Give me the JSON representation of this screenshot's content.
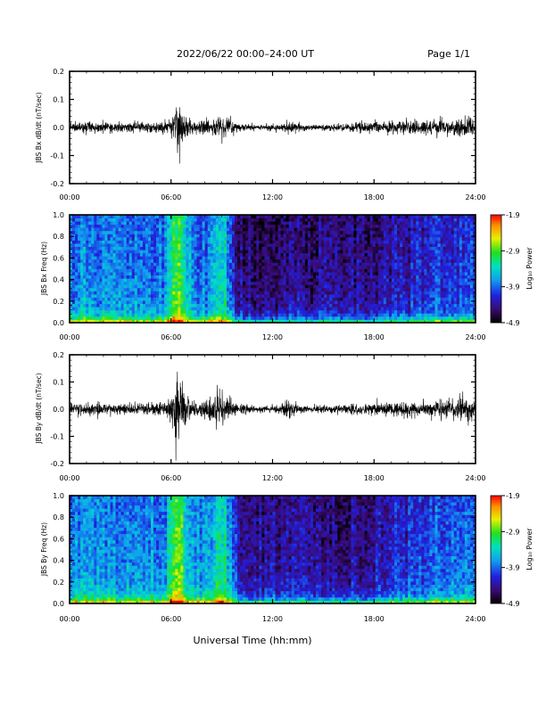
{
  "header": {
    "title": "2022/06/22  00:00–24:00 UT",
    "page": "Page 1/1"
  },
  "x_axis": {
    "title": "Universal Time (hh:mm)",
    "tick_labels": [
      "00:00",
      "06:00",
      "12:00",
      "18:00",
      "24:00"
    ],
    "ticks_hours": [
      0,
      6,
      12,
      18,
      24
    ],
    "range_hours": [
      0,
      24
    ]
  },
  "colorbar": {
    "label": "Log₁₀ Power",
    "tick_labels": [
      "-1.9",
      "-2.9",
      "-3.9",
      "-4.9"
    ],
    "ticks": [
      -1.9,
      -2.9,
      -3.9,
      -4.9
    ],
    "range": [
      -4.9,
      -1.9
    ]
  },
  "chart_data": [
    {
      "type": "line",
      "ylabel": "JBS Bx dB/dt (nT/sec)",
      "ylim": [
        -0.2,
        0.2
      ],
      "yticks": [
        -0.2,
        -0.1,
        0.0,
        0.1,
        0.2
      ],
      "ytick_labels": [
        "-0.2",
        "-0.1",
        "0.0",
        "0.1",
        "0.2"
      ],
      "series": [
        {
          "x_hours": [
            0,
            1,
            2,
            3,
            4,
            5,
            5.8,
            6.2,
            6.4,
            6.6,
            6.8,
            7.0,
            7.5,
            8,
            8.7,
            9.0,
            9.3,
            9.6,
            10,
            11,
            12,
            12.5,
            13,
            13.5,
            14,
            15,
            16,
            17,
            18,
            19,
            20,
            21,
            22,
            22.5,
            23,
            23.5,
            24
          ],
          "envelope_nT_per_s": [
            0.018,
            0.018,
            0.018,
            0.016,
            0.016,
            0.017,
            0.02,
            0.04,
            0.09,
            0.07,
            0.05,
            0.03,
            0.02,
            0.02,
            0.03,
            0.045,
            0.03,
            0.025,
            0.012,
            0.008,
            0.008,
            0.015,
            0.02,
            0.012,
            0.01,
            0.009,
            0.012,
            0.015,
            0.018,
            0.02,
            0.022,
            0.022,
            0.025,
            0.025,
            0.03,
            0.03,
            0.03
          ]
        }
      ]
    },
    {
      "type": "heatmap",
      "ylabel": "JBS Bx Freq (Hz)",
      "ylim": [
        0.0,
        1.0
      ],
      "yticks": [
        0.0,
        0.2,
        0.4,
        0.6,
        0.8,
        1.0
      ],
      "ytick_labels": [
        "0.0",
        "0.2",
        "0.4",
        "0.6",
        "0.8",
        "1.0"
      ],
      "value_label": "Log₁₀ Power",
      "value_range": [
        -4.9,
        -1.9
      ],
      "time_profile": {
        "x_hours": [
          0,
          5.7,
          6.0,
          6.3,
          6.7,
          7.0,
          7.3,
          7.7,
          8.0,
          8.4,
          8.9,
          9.2,
          9.5,
          10.0,
          11,
          12,
          14,
          16,
          18,
          20,
          21.5,
          23,
          24
        ],
        "log_power_mid_band": [
          -3.75,
          -3.75,
          -3.1,
          -2.9,
          -3.1,
          -3.5,
          -3.75,
          -3.8,
          -3.85,
          -3.7,
          -3.3,
          -3.4,
          -3.9,
          -4.4,
          -4.5,
          -4.5,
          -4.45,
          -4.45,
          -4.35,
          -4.25,
          -4.1,
          -4.05,
          -4.0
        ]
      }
    },
    {
      "type": "line",
      "ylabel": "JBS By dB/dt (nT/sec)",
      "ylim": [
        -0.2,
        0.2
      ],
      "yticks": [
        -0.2,
        -0.1,
        0.0,
        0.1,
        0.2
      ],
      "ytick_labels": [
        "-0.2",
        "-0.1",
        "0.0",
        "0.1",
        "0.2"
      ],
      "series": [
        {
          "x_hours": [
            0,
            1,
            2,
            3,
            4,
            5,
            5.8,
            6.1,
            6.3,
            6.5,
            6.7,
            6.9,
            7.2,
            7.6,
            8.0,
            8.5,
            8.9,
            9.2,
            9.6,
            10,
            11,
            12,
            12.5,
            13,
            13.5,
            14,
            15,
            16,
            17,
            18,
            19,
            20,
            21,
            22,
            22.5,
            23,
            23.5,
            24
          ],
          "envelope_nT_per_s": [
            0.02,
            0.02,
            0.02,
            0.018,
            0.018,
            0.02,
            0.025,
            0.06,
            0.13,
            0.1,
            0.07,
            0.05,
            0.03,
            0.025,
            0.03,
            0.05,
            0.08,
            0.06,
            0.035,
            0.018,
            0.01,
            0.01,
            0.018,
            0.035,
            0.015,
            0.012,
            0.012,
            0.014,
            0.018,
            0.02,
            0.022,
            0.025,
            0.025,
            0.028,
            0.03,
            0.04,
            0.04,
            0.04
          ]
        }
      ]
    },
    {
      "type": "heatmap",
      "ylabel": "JBS By Freq (Hz)",
      "ylim": [
        0.0,
        1.0
      ],
      "yticks": [
        0.0,
        0.2,
        0.4,
        0.6,
        0.8,
        1.0
      ],
      "ytick_labels": [
        "0.0",
        "0.2",
        "0.4",
        "0.6",
        "0.8",
        "1.0"
      ],
      "value_label": "Log₁₀ Power",
      "value_range": [
        -4.9,
        -1.9
      ],
      "time_profile": {
        "x_hours": [
          0,
          5.7,
          6.0,
          6.3,
          6.7,
          7.0,
          7.3,
          7.7,
          8.0,
          8.4,
          8.9,
          9.2,
          9.5,
          10.0,
          11,
          12,
          14,
          16,
          18,
          20,
          21.5,
          23,
          24
        ],
        "log_power_mid_band": [
          -3.7,
          -3.7,
          -3.0,
          -2.8,
          -3.0,
          -3.4,
          -3.6,
          -3.7,
          -3.75,
          -3.5,
          -3.2,
          -3.3,
          -3.7,
          -4.2,
          -4.35,
          -4.35,
          -4.35,
          -4.4,
          -4.3,
          -4.1,
          -3.85,
          -3.8,
          -3.8
        ]
      }
    }
  ]
}
